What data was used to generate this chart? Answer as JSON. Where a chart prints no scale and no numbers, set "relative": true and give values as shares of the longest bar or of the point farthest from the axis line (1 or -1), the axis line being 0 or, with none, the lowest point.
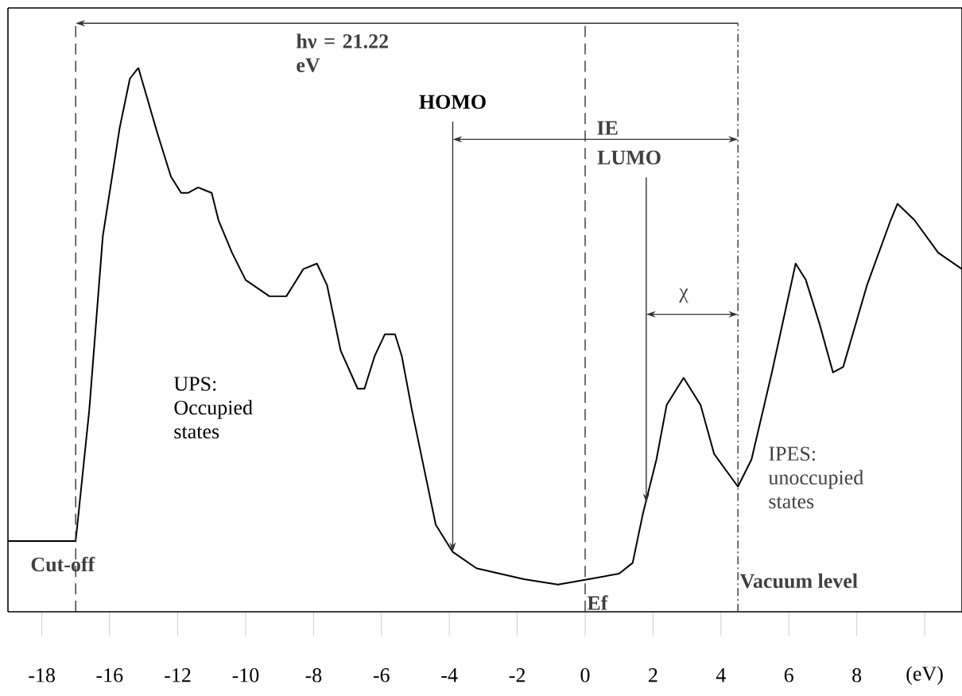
{
  "chart_data": [
    {
      "type": "line",
      "relative": true,
      "color": "#000000",
      "x": [
        -19.0,
        -17.0,
        -16.6,
        -16.2,
        -15.7,
        -15.4,
        -15.15
      ],
      "values": [
        0.13,
        0.13,
        0.37,
        0.69,
        0.89,
        0.98,
        1
      ],
      "xlim": [
        -19.0,
        -15.15
      ],
      "xticks": [
        -18,
        -16
      ],
      "ref_lines": [
        {
          "axis": "x",
          "value": -17.0,
          "line_style": "dashed"
        }
      ],
      "annotations": [
        "Cut-off"
      ]
    },
    {
      "type": "line",
      "relative": true,
      "xlabel": "(eV)",
      "color": "#000000",
      "x": [
        -13.16,
        -12.6,
        -12.2,
        -11.9,
        -11.7,
        -11.4,
        -11.0,
        -10.8,
        -10.4,
        -10.0,
        -9.3,
        -8.8,
        -8.6,
        -8.3,
        -7.9,
        -7.6,
        -7.2,
        -6.7,
        -6.5,
        -6.2,
        -5.9,
        -5.6,
        -5.4,
        -5.1,
        -4.7,
        -4.4,
        -3.9,
        -3.2,
        -1.8,
        -0.8,
        0.1,
        1.0,
        1.4,
        1.7,
        2.1,
        2.4,
        2.9,
        3.4,
        3.8,
        4.5,
        4.9,
        5.5,
        6.2,
        6.5,
        6.9,
        7.3,
        7.6,
        8.3,
        9.0,
        9.2,
        9.7,
        10.4,
        11.1
      ],
      "values": [
        1,
        0.88,
        0.8,
        0.77,
        0.77,
        0.78,
        0.77,
        0.72,
        0.66,
        0.61,
        0.58,
        0.58,
        0.6,
        0.63,
        0.64,
        0.6,
        0.48,
        0.41,
        0.41,
        0.47,
        0.51,
        0.51,
        0.47,
        0.37,
        0.25,
        0.16,
        0.11,
        0.08,
        0.06,
        0.05,
        0.06,
        0.07,
        0.09,
        0.18,
        0.28,
        0.38,
        0.43,
        0.38,
        0.29,
        0.23,
        0.28,
        0.44,
        0.64,
        0.61,
        0.53,
        0.44,
        0.45,
        0.6,
        0.72,
        0.75,
        0.72,
        0.66,
        0.63
      ],
      "xlim": [
        -13.16,
        11.1
      ],
      "xticks": [
        -12,
        -10,
        -8,
        -6,
        -4,
        -2,
        0,
        2,
        4,
        6,
        8,
        {
          "value": 10,
          "label": null
        }
      ],
      "ref_lines": [
        {
          "axis": "x",
          "value": 0,
          "label": "Ef",
          "line_style": "dashed"
        },
        {
          "axis": "x",
          "value": 4.5,
          "label": "Vacuum level",
          "line_style": "dashdot"
        }
      ],
      "annotations": [
        "hν = 21.22 eV",
        "IE",
        "χ",
        "UPS: Occupied states",
        "IPES: unoccupied states",
        {
          "text": "HOMO",
          "x": -3.9,
          "y": 0.11
        },
        {
          "text": "LUMO",
          "x": 1.8,
          "y": 0.2
        }
      ]
    }
  ]
}
